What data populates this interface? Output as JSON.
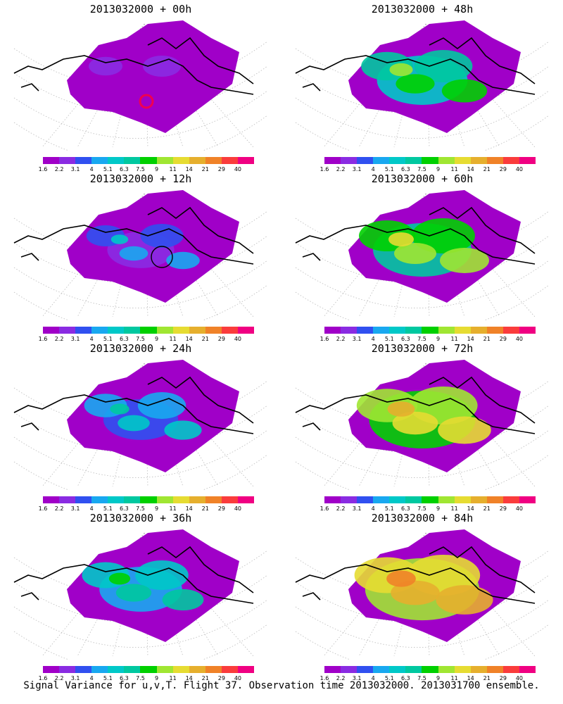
{
  "panels": [
    {
      "title": "2013032000 + 00h",
      "level": 0,
      "marker": "red-circle"
    },
    {
      "title": "2013032000 + 48h",
      "level": 4,
      "marker": "none"
    },
    {
      "title": "2013032000 + 12h",
      "level": 1,
      "marker": "black-circle"
    },
    {
      "title": "2013032000 + 60h",
      "level": 5,
      "marker": "none"
    },
    {
      "title": "2013032000 + 24h",
      "level": 2,
      "marker": "none"
    },
    {
      "title": "2013032000 + 72h",
      "level": 6,
      "marker": "none"
    },
    {
      "title": "2013032000 + 36h",
      "level": 3,
      "marker": "none"
    },
    {
      "title": "2013032000 + 84h",
      "level": 7,
      "marker": "none"
    }
  ],
  "colorbar": {
    "colors": [
      "#a000c8",
      "#8a2be2",
      "#3050f0",
      "#18a8f0",
      "#00c8c8",
      "#00c8a0",
      "#00d000",
      "#a0e632",
      "#e6dc32",
      "#e6af2d",
      "#f08228",
      "#fa3c3c",
      "#f00082"
    ],
    "labels": [
      "1.6",
      "2.2",
      "3.1",
      "4",
      "5.1",
      "6.3",
      "7.5",
      "9",
      "11",
      "14",
      "21",
      "29",
      "40"
    ]
  },
  "caption": "Signal Variance for u,v,T. Flight 37. Observation time 2013032000. 2013031700 ensemble."
}
